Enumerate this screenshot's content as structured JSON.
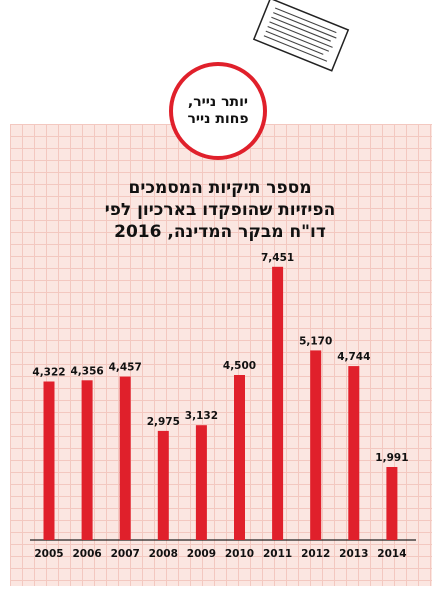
{
  "badge": {
    "line1": "יותר נייר,",
    "line2": "פחות נייר"
  },
  "title_lines": [
    "מספר תיקיות המסמכים",
    "הפיזיות שהופקדו בארכיון לפי",
    "דו\"ח מבקר המדינה, 2016"
  ],
  "colors": {
    "bar": "#e0202b",
    "panel": "#fbe6e1",
    "grid": "#f3c8c0",
    "badge_border": "#e0202b"
  },
  "icons": {
    "top": "paper-sheet-icon"
  },
  "chart_data": {
    "type": "bar",
    "categories": [
      "2005",
      "2006",
      "2007",
      "2008",
      "2009",
      "2010",
      "2011",
      "2012",
      "2013",
      "2014"
    ],
    "values": [
      4322,
      4356,
      4457,
      2975,
      3132,
      4500,
      7451,
      5170,
      4744,
      1991
    ],
    "value_labels": [
      "4,322",
      "4,356",
      "4,457",
      "2,975",
      "3,132",
      "4,500",
      "7,451",
      "5,170",
      "4,744",
      "1,991"
    ],
    "ylim": [
      0,
      7800
    ],
    "grid": true,
    "title": "מספר תיקיות המסמכים הפיזיות שהופקדו בארכיון לפי דו\"ח מבקר המדינה, 2016"
  }
}
